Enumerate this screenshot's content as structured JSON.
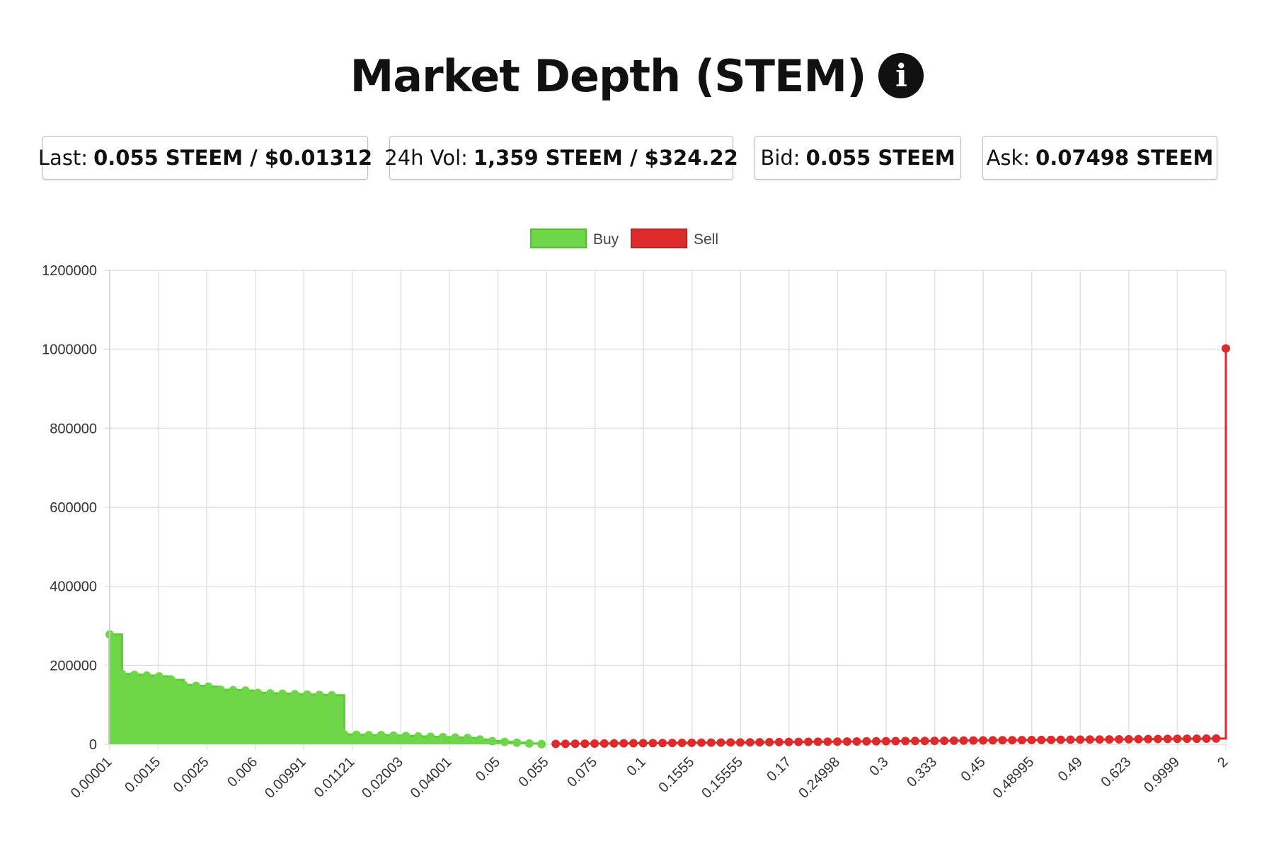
{
  "header": {
    "title": "Market Depth (STEM)",
    "info_icon": "info-circle-icon"
  },
  "stats": {
    "last": {
      "label": "Last:",
      "value": "0.055 STEEM / $0.01312"
    },
    "vol": {
      "label": "24h Vol:",
      "value": "1,359 STEEM / $324.22"
    },
    "bid": {
      "label": "Bid:",
      "value": "0.055 STEEM"
    },
    "ask": {
      "label": "Ask:",
      "value": "0.07498 STEEM"
    }
  },
  "chart_data": {
    "type": "area",
    "title": "",
    "xlabel": "",
    "ylabel": "",
    "ylim": [
      0,
      1200000
    ],
    "yticks": [
      "0",
      "200000",
      "400000",
      "600000",
      "800000",
      "1000000",
      "1200000"
    ],
    "grid": true,
    "legend_position": "top-center",
    "x_tick_labels": [
      "0.00001",
      "0.0015",
      "0.0025",
      "0.006",
      "0.00991",
      "0.01121",
      "0.02003",
      "0.04001",
      "0.05",
      "0.055",
      "0.075",
      "0.1",
      "0.1555",
      "0.15555",
      "0.17",
      "0.24998",
      "0.3",
      "0.333",
      "0.45",
      "0.48995",
      "0.49",
      "0.623",
      "0.9999",
      "2"
    ],
    "series": [
      {
        "name": "Buy",
        "color": "#6fd649",
        "fill": "#6fd649",
        "values": [
          278000,
          178000,
          176000,
          174000,
          172000,
          163000,
          150000,
          148000,
          146000,
          138000,
          137000,
          136000,
          130000,
          129000,
          128000,
          127000,
          126000,
          125000,
          124000,
          25000,
          24000,
          23000,
          23000,
          22000,
          21000,
          20000,
          19000,
          18000,
          17000,
          16000,
          12000,
          8000,
          6000,
          4000,
          2000,
          500
        ]
      },
      {
        "name": "Sell",
        "color": "#dd2a2a",
        "fill": "none",
        "values": [
          1000,
          1200,
          1400,
          1600,
          1800,
          2000,
          2200,
          2400,
          2600,
          2800,
          3000,
          3200,
          3400,
          3600,
          3800,
          4000,
          4200,
          4400,
          4600,
          4800,
          5000,
          5200,
          5400,
          5600,
          5800,
          6000,
          6200,
          6400,
          6600,
          6800,
          7000,
          7200,
          7400,
          7600,
          7800,
          8000,
          8200,
          8400,
          8600,
          8800,
          9000,
          9200,
          9400,
          9600,
          9800,
          10000,
          10200,
          10400,
          10600,
          10800,
          11000,
          11200,
          11400,
          11600,
          11800,
          12000,
          12200,
          12400,
          12600,
          12800,
          13000,
          13200,
          13400,
          13600,
          13800,
          14000,
          14200,
          14400,
          14600,
          1002000
        ]
      }
    ]
  }
}
